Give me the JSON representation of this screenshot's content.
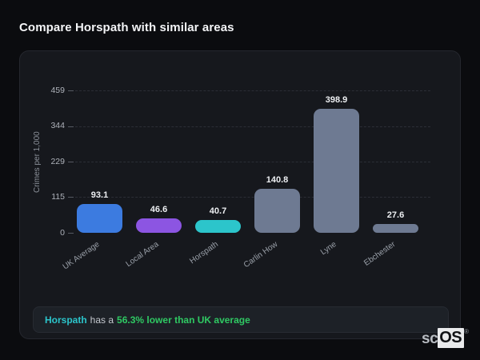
{
  "page": {
    "title": "Compare Horspath with similar areas"
  },
  "chart_data": {
    "type": "bar",
    "title": "Compare Horspath with similar areas",
    "categories": [
      "UK Average",
      "Local Area",
      "Horspath",
      "Carlin How",
      "Lyne",
      "Ebchester"
    ],
    "values": [
      93.1,
      46.6,
      40.7,
      140.8,
      398.9,
      27.6
    ],
    "value_labels": [
      "93.1",
      "46.6",
      "40.7",
      "140.8",
      "398.9",
      "27.6"
    ],
    "bar_colors": [
      "#3c7be0",
      "#8c55e2",
      "#2cc5cb",
      "#6e7a92",
      "#6e7a92",
      "#6e7a92"
    ],
    "xlabel": "",
    "ylabel": "Crimes per 1,000",
    "yticks": [
      0,
      115,
      229,
      344,
      459
    ],
    "ylim": [
      0,
      459
    ],
    "grid": "dashed-horizontal",
    "legend": "none",
    "label_rotation_deg": -35
  },
  "status": {
    "area": "Horspath",
    "connector": "has a",
    "comparison": "56.3% lower than UK average",
    "area_color": "#2cc5cb",
    "comparison_color": "#2fc963"
  },
  "logo": {
    "prefix": "sc",
    "suffix": "OS",
    "registered": "®"
  }
}
